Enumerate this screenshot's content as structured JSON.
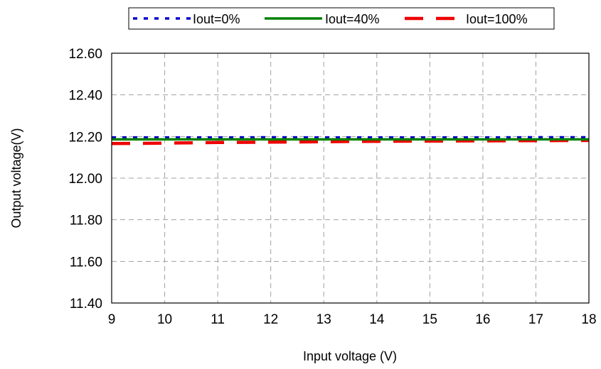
{
  "chart_data": {
    "type": "line",
    "xlabel": "Input voltage (V)",
    "ylabel": "Output voltage(V)",
    "xlim": [
      9,
      18
    ],
    "ylim": [
      11.4,
      12.6
    ],
    "x_ticks": [
      "9",
      "10",
      "11",
      "12",
      "13",
      "14",
      "15",
      "16",
      "17",
      "18"
    ],
    "y_ticks": [
      "12.60",
      "12.40",
      "12.20",
      "12.00",
      "11.80",
      "11.60",
      "11.40"
    ],
    "grid": true,
    "legend_position": "top",
    "x": [
      9,
      10,
      11,
      12,
      13,
      14,
      15,
      16,
      17,
      18
    ],
    "series": [
      {
        "name": "Iout=0%",
        "color": "#0000cc",
        "style": "dotted",
        "values": [
          12.195,
          12.195,
          12.195,
          12.196,
          12.195,
          12.195,
          12.195,
          12.195,
          12.196,
          12.196
        ]
      },
      {
        "name": "Iout=40%",
        "color": "#008000",
        "style": "solid",
        "values": [
          12.186,
          12.186,
          12.186,
          12.186,
          12.186,
          12.186,
          12.186,
          12.186,
          12.186,
          12.186
        ]
      },
      {
        "name": "Iout=100%",
        "color": "#ee0000",
        "style": "dashed",
        "values": [
          12.166,
          12.168,
          12.171,
          12.173,
          12.175,
          12.177,
          12.178,
          12.179,
          12.18,
          12.181
        ]
      }
    ]
  }
}
